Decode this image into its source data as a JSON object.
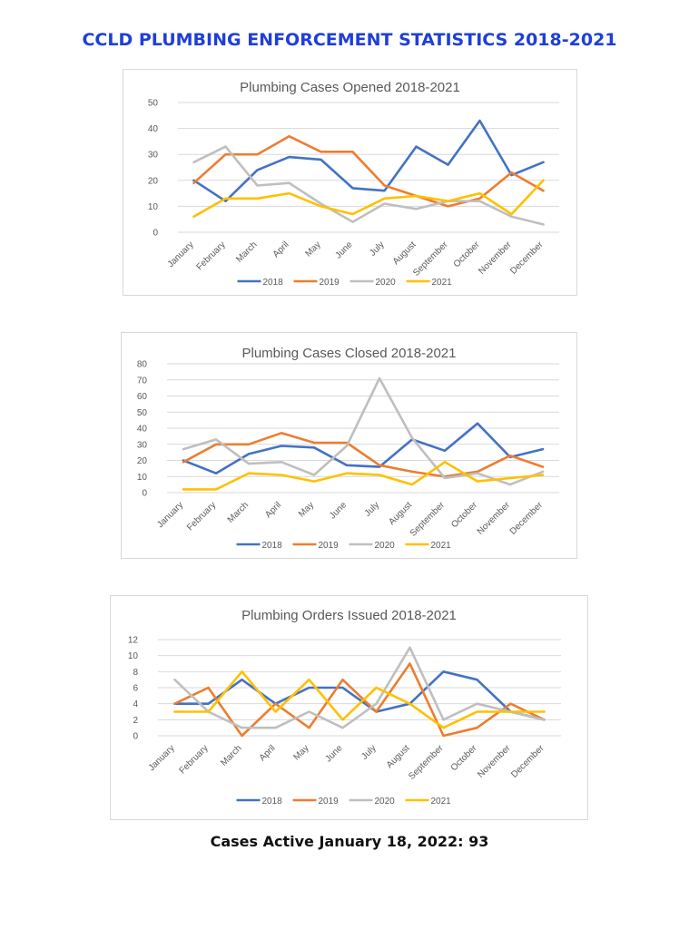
{
  "page": {
    "title": "CCLD PLUMBING ENFORCEMENT STATISTICS 2018-2021",
    "footer": "Cases Active January 18, 2022: 93"
  },
  "chart_data": [
    {
      "type": "line",
      "title": "Plumbing Cases Opened 2018-2021",
      "categories": [
        "January",
        "February",
        "March",
        "April",
        "May",
        "June",
        "July",
        "August",
        "September",
        "October",
        "November",
        "December"
      ],
      "ylim": [
        0,
        50
      ],
      "yticks": [
        0,
        10,
        20,
        30,
        40,
        50
      ],
      "grid": true,
      "legend": "bottom",
      "series": [
        {
          "name": "2018",
          "color": "#4472c4",
          "values": [
            20,
            12,
            24,
            29,
            28,
            17,
            16,
            33,
            26,
            43,
            22,
            27
          ]
        },
        {
          "name": "2019",
          "color": "#ed7d31",
          "values": [
            19,
            30,
            30,
            37,
            31,
            31,
            18,
            14,
            10,
            13,
            23,
            16
          ]
        },
        {
          "name": "2020",
          "color": "#bfbfbf",
          "values": [
            27,
            33,
            18,
            19,
            11,
            4,
            11,
            9,
            12,
            12,
            6,
            3
          ]
        },
        {
          "name": "2021",
          "color": "#ffc000",
          "values": [
            6,
            13,
            13,
            15,
            10,
            7,
            13,
            14,
            12,
            15,
            7,
            20
          ]
        }
      ]
    },
    {
      "type": "line",
      "title": "Plumbing Cases Closed 2018-2021",
      "categories": [
        "January",
        "February",
        "March",
        "April",
        "May",
        "June",
        "July",
        "August",
        "September",
        "October",
        "November",
        "December"
      ],
      "ylim": [
        0,
        80
      ],
      "yticks": [
        0,
        10,
        20,
        30,
        40,
        50,
        60,
        70,
        80
      ],
      "grid": true,
      "legend": "bottom",
      "series": [
        {
          "name": "2018",
          "color": "#4472c4",
          "values": [
            20,
            12,
            24,
            29,
            28,
            17,
            16,
            33,
            26,
            43,
            22,
            27
          ]
        },
        {
          "name": "2019",
          "color": "#ed7d31",
          "values": [
            19,
            30,
            30,
            37,
            31,
            31,
            17,
            13,
            10,
            13,
            23,
            16
          ]
        },
        {
          "name": "2020",
          "color": "#bfbfbf",
          "values": [
            27,
            33,
            18,
            19,
            11,
            29,
            71,
            34,
            9,
            12,
            5,
            13
          ]
        },
        {
          "name": "2021",
          "color": "#ffc000",
          "values": [
            2,
            2,
            12,
            11,
            7,
            12,
            11,
            5,
            19,
            7,
            9,
            11
          ]
        }
      ]
    },
    {
      "type": "line",
      "title": "Plumbing Orders Issued 2018-2021",
      "categories": [
        "January",
        "February",
        "March",
        "April",
        "May",
        "June",
        "July",
        "August",
        "September",
        "October",
        "November",
        "December"
      ],
      "ylim": [
        0,
        12
      ],
      "yticks": [
        0,
        2,
        4,
        6,
        8,
        10,
        12
      ],
      "grid": true,
      "legend": "bottom",
      "series": [
        {
          "name": "2018",
          "color": "#4472c4",
          "values": [
            4,
            4,
            7,
            4,
            6,
            6,
            3,
            4,
            8,
            7,
            3,
            2
          ]
        },
        {
          "name": "2019",
          "color": "#ed7d31",
          "values": [
            4,
            6,
            0,
            4,
            1,
            7,
            3,
            9,
            0,
            1,
            4,
            2
          ]
        },
        {
          "name": "2020",
          "color": "#bfbfbf",
          "values": [
            7,
            3,
            1,
            1,
            3,
            1,
            4,
            11,
            2,
            4,
            3,
            2
          ]
        },
        {
          "name": "2021",
          "color": "#ffc000",
          "values": [
            3,
            3,
            8,
            3,
            7,
            2,
            6,
            4,
            1,
            3,
            3,
            3
          ]
        }
      ]
    }
  ]
}
